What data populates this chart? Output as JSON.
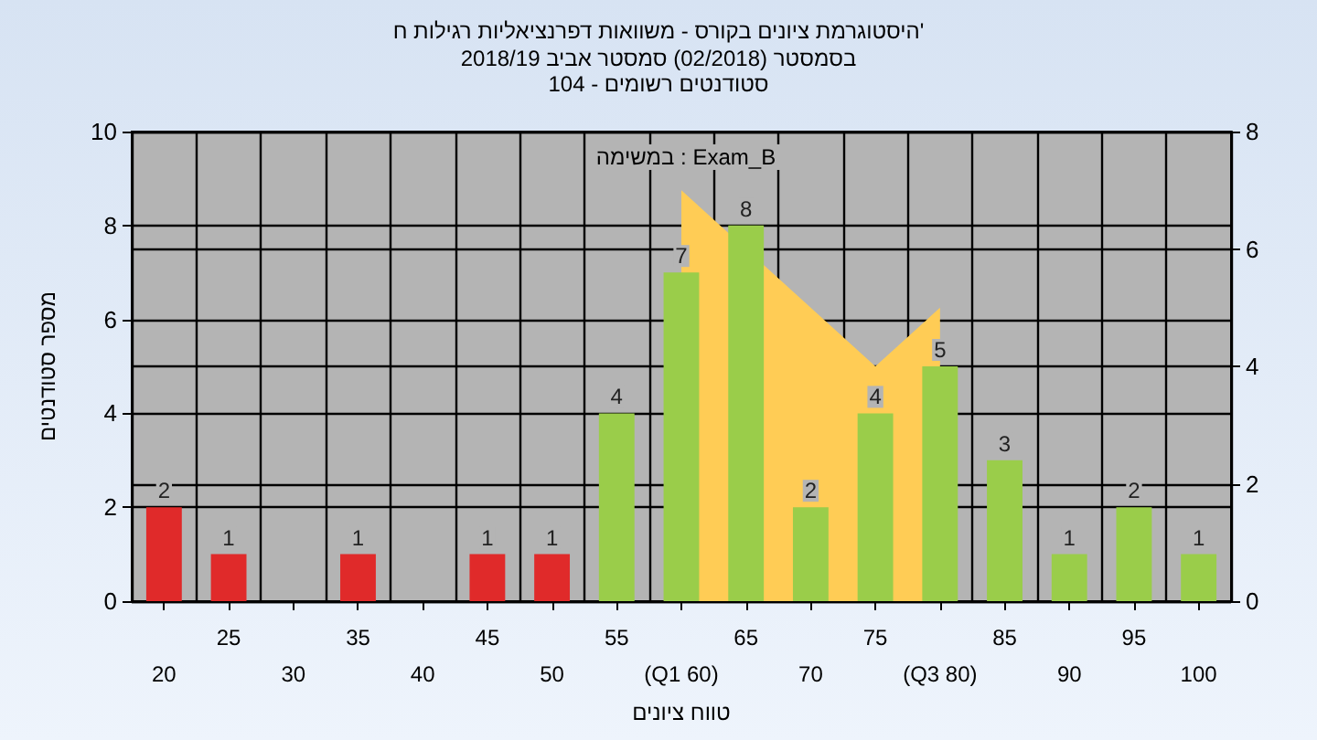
{
  "chart_data": {
    "type": "bar",
    "title": "היסטוגרמת ציונים בקורס - משוואות דפרנציאליות רגילות ח'",
    "subtitle": "בסמסטר (02/2018) סמסטר אביב 2018/19\nסטודנטים רשומים - 104",
    "xlabel": "טווח ציונים",
    "ylabel": "מספר סטודנטים",
    "annotations": [
      "במשימה : Exam_B"
    ],
    "categories": [
      "20",
      "25",
      "30",
      "35",
      "40",
      "45",
      "50",
      "55",
      "(Q1 60)",
      "65",
      "70",
      "75",
      "(Q3 80)",
      "85",
      "90",
      "95",
      "100"
    ],
    "series": [
      {
        "values": [
          2,
          1,
          0,
          1,
          0,
          1,
          1,
          4,
          7,
          8,
          2,
          4,
          5,
          3,
          1,
          2,
          1
        ],
        "colors": [
          "#e02a2a",
          "#e02a2a",
          "#e02a2a",
          "#e02a2a",
          "#e02a2a",
          "#e02a2a",
          "#e02a2a",
          "#9acd4a",
          "#9acd4a",
          "#9acd4a",
          "#9acd4a",
          "#9acd4a",
          "#9acd4a",
          "#9acd4a",
          "#9acd4a",
          "#9acd4a",
          "#9acd4a"
        ],
        "value_labels": [
          "2",
          "1",
          null,
          "1",
          null,
          "1",
          "1",
          "4",
          "7",
          "8",
          "2",
          "4",
          "5",
          "3",
          "1",
          "2",
          "1"
        ]
      },
      {
        "type": "area",
        "axis": "y2",
        "color": "#ffcc55",
        "values": [
          null,
          null,
          null,
          null,
          null,
          null,
          null,
          null,
          7,
          null,
          5,
          4,
          5,
          null,
          null,
          null,
          null
        ]
      }
    ],
    "ylim": [
      0,
      10
    ],
    "yticks": [
      0,
      2,
      4,
      6,
      8,
      10
    ],
    "y2lim": [
      0,
      8
    ],
    "y2ticks": [
      0,
      2,
      4,
      6,
      8
    ],
    "grid": true
  }
}
